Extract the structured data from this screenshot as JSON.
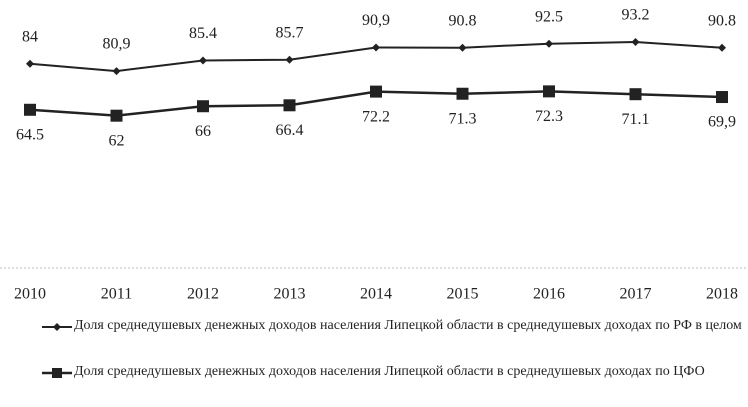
{
  "chart_data": {
    "type": "line",
    "categories": [
      "2010",
      "2011",
      "2012",
      "2013",
      "2014",
      "2015",
      "2016",
      "2017",
      "2018"
    ],
    "ylim": [
      0,
      100
    ],
    "series": [
      {
        "name": "Доля среднедушевых денежных доходов населения Липецкой области в среднедушевых доходах по РФ в целом",
        "color": "#222222",
        "marker": "diamond",
        "values": [
          84,
          80.9,
          85.4,
          85.7,
          90.9,
          90.8,
          92.5,
          93.2,
          90.8
        ],
        "value_labels": [
          "84",
          "80,9",
          "85.4",
          "85.7",
          "90,9",
          "90.8",
          "92.5",
          "93.2",
          "90.8"
        ]
      },
      {
        "name": "Доля среднедушевых денежных доходов населения Липецкой области в среднедушевых доходах по ЦФО",
        "color": "#222222",
        "marker": "square",
        "values": [
          64.5,
          62,
          66,
          66.4,
          72.2,
          71.3,
          72.3,
          71.1,
          69.9
        ],
        "value_labels": [
          "64.5",
          "62",
          "66",
          "66.4",
          "72.2",
          "71.3",
          "72.3",
          "71.1",
          "69,9"
        ]
      }
    ]
  }
}
